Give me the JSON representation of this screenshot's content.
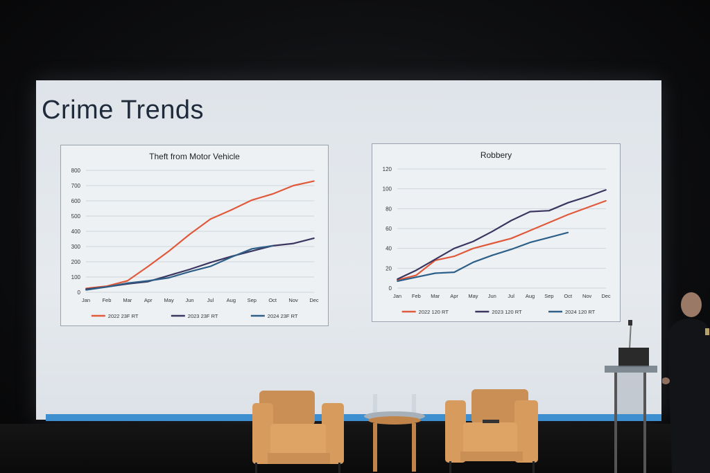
{
  "slide": {
    "title": "Crime Trends"
  },
  "colors": {
    "series_2022": "#e0593a",
    "series_2023": "#3b3560",
    "series_2024": "#2d5f87",
    "grid": "#cfd5dc",
    "text": "#333"
  },
  "chart_data": [
    {
      "type": "line",
      "title": "Theft from Motor Vehicle",
      "categories": [
        "Jan",
        "Feb",
        "Mar",
        "Apr",
        "May",
        "Jun",
        "Jul",
        "Aug",
        "Sep",
        "Oct",
        "Nov",
        "Dec"
      ],
      "yticks": [
        "0",
        "100",
        "200",
        "300",
        "400",
        "500",
        "600",
        "700",
        "800"
      ],
      "ylim": [
        0,
        800
      ],
      "grid": true,
      "legend": "bottom",
      "series": [
        {
          "name": "2022 23F RT",
          "color": "#e0593a",
          "values": [
            25,
            40,
            75,
            170,
            270,
            380,
            480,
            540,
            605,
            645,
            700,
            730
          ]
        },
        {
          "name": "2023 23F RT",
          "color": "#3b3560",
          "values": [
            20,
            35,
            55,
            70,
            110,
            150,
            195,
            235,
            270,
            305,
            320,
            355
          ]
        },
        {
          "name": "2024 23F RT",
          "color": "#2d5f87",
          "values": [
            15,
            35,
            60,
            75,
            95,
            135,
            170,
            230,
            285,
            305,
            null,
            null
          ]
        }
      ]
    },
    {
      "type": "line",
      "title": "Robbery",
      "categories": [
        "Jan",
        "Feb",
        "Mar",
        "Apr",
        "May",
        "Jun",
        "Jul",
        "Aug",
        "Sep",
        "Oct",
        "Nov",
        "Dec"
      ],
      "yticks": [
        "0",
        "20",
        "40",
        "60",
        "80",
        "100",
        "120"
      ],
      "ylim": [
        0,
        120
      ],
      "grid": true,
      "legend": "bottom",
      "series": [
        {
          "name": "2022 120 RT",
          "color": "#e0593a",
          "values": [
            8,
            13,
            28,
            32,
            40,
            45,
            50,
            58,
            66,
            74,
            81,
            88
          ]
        },
        {
          "name": "2023 120 RT",
          "color": "#3b3560",
          "values": [
            9,
            18,
            29,
            40,
            47,
            57,
            68,
            77,
            78,
            86,
            92,
            99
          ]
        },
        {
          "name": "2024 120 RT",
          "color": "#2d5f87",
          "values": [
            7,
            11,
            15,
            16,
            26,
            33,
            39,
            46,
            51,
            56,
            null,
            null
          ]
        }
      ]
    }
  ]
}
